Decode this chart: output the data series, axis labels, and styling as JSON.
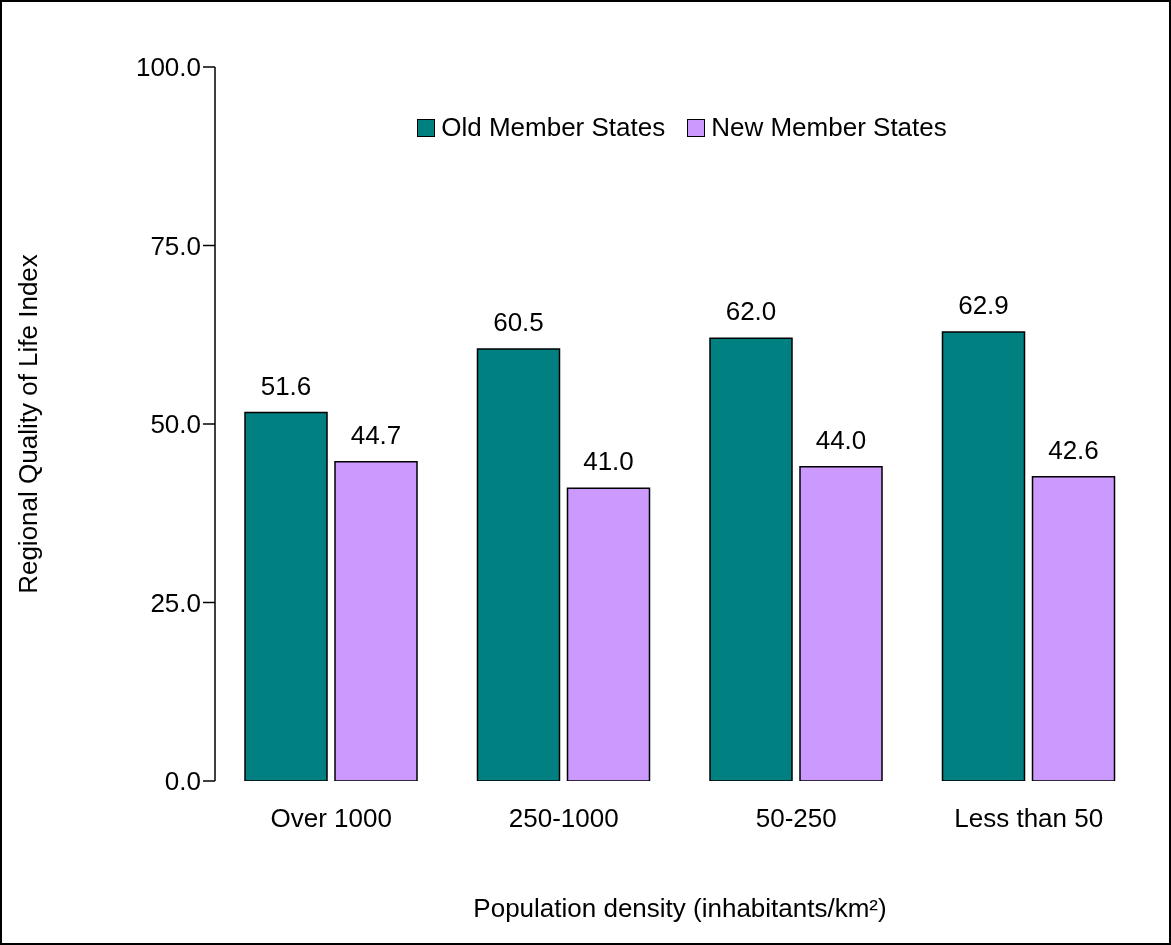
{
  "chart_data": {
    "type": "bar",
    "ylabel": "Regional Quality of Life Index",
    "xlabel": "Population density (inhabitants/km²)",
    "categories": [
      "Over 1000",
      "250-1000",
      "50-250",
      "Less than 50"
    ],
    "series": [
      {
        "name": "Old Member States",
        "color": "#008080",
        "values": [
          51.6,
          60.5,
          62.0,
          62.9
        ],
        "value_labels": [
          "51.6",
          "60.5",
          "62.0",
          "62.9"
        ]
      },
      {
        "name": "New Member States",
        "color": "#cc99ff",
        "values": [
          44.7,
          41.0,
          44.0,
          42.6
        ],
        "value_labels": [
          "44.7",
          "41.0",
          "44.0",
          "42.6"
        ]
      }
    ],
    "ylim": [
      0,
      100
    ],
    "yticks": [
      {
        "value": 0,
        "label": "0.0"
      },
      {
        "value": 25,
        "label": "25.0"
      },
      {
        "value": 50,
        "label": "50.0"
      },
      {
        "value": 75,
        "label": "75.0"
      },
      {
        "value": 100,
        "label": "100.0"
      }
    ],
    "grid": false,
    "legend": "top"
  }
}
